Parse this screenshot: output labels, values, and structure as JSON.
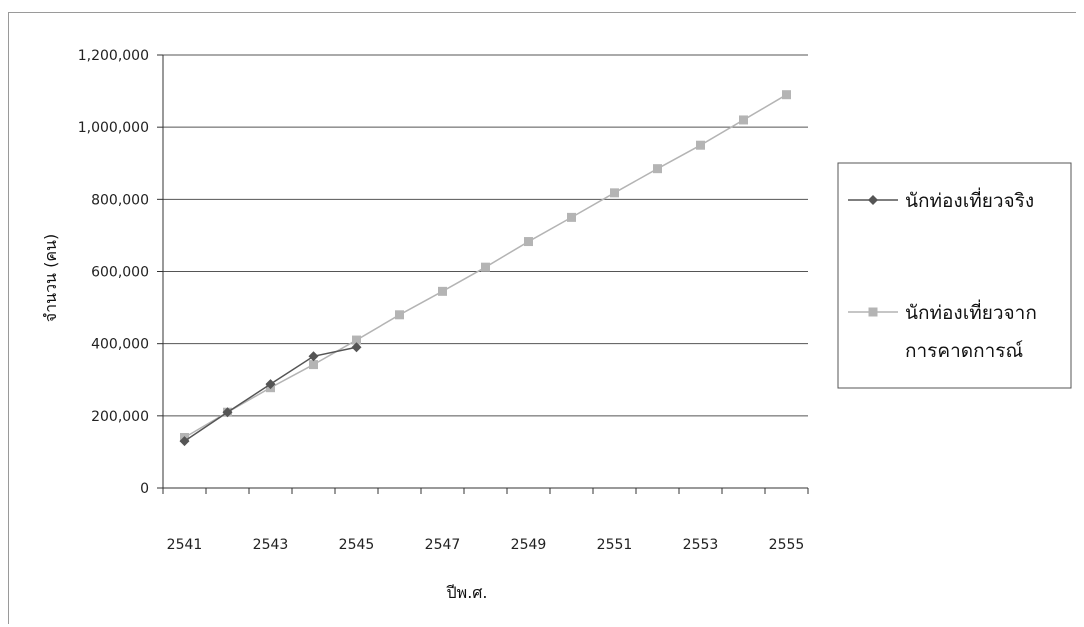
{
  "chart_data": {
    "type": "line",
    "xlabel": "ปีพ.ศ.",
    "ylabel": "จำนวน (คน)",
    "x": [
      2541,
      2542,
      2543,
      2544,
      2545,
      2546,
      2547,
      2548,
      2549,
      2550,
      2551,
      2552,
      2553,
      2554,
      2555
    ],
    "xticks": [
      "2541",
      "2543",
      "2545",
      "2547",
      "2549",
      "2551",
      "2553",
      "2555"
    ],
    "ylim": [
      0,
      1200000
    ],
    "yticks": [
      "0",
      "200,000",
      "400,000",
      "600,000",
      "800,000",
      "1,000,000",
      "1,200,000"
    ],
    "grid": true,
    "legend_position": "right",
    "series": [
      {
        "name": "นักท่องเที่ยวจริง",
        "color": "#555555",
        "marker": "diamond",
        "x": [
          2541,
          2542,
          2543,
          2544,
          2545
        ],
        "values": [
          130000,
          210000,
          288000,
          365000,
          390000
        ]
      },
      {
        "name": "นักท่องเที่ยวจากการคาดการณ์",
        "color": "#b4b4b4",
        "marker": "square",
        "x": [
          2541,
          2542,
          2543,
          2544,
          2545,
          2546,
          2547,
          2548,
          2549,
          2550,
          2551,
          2552,
          2553,
          2554,
          2555
        ],
        "values": [
          140000,
          210000,
          278000,
          342000,
          410000,
          480000,
          545000,
          612000,
          683000,
          750000,
          818000,
          885000,
          950000,
          1020000,
          1090000
        ]
      }
    ],
    "legend_lines": [
      [
        "นักท่องเที่ยวจริง"
      ],
      [
        "นักท่องเที่ยวจาก",
        "การคาดการณ์"
      ]
    ]
  }
}
